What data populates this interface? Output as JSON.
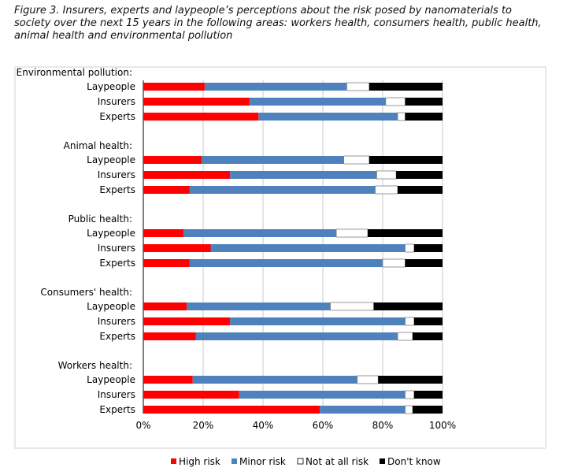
{
  "caption": "Figure 3. Insurers, experts and laypeople’s perceptions about the risk posed by nanomaterials to society over the next 15 years in the following areas: workers health, consumers health, public health, animal health and environmental pollution",
  "chart_data": {
    "type": "bar",
    "orientation": "horizontal",
    "stacked": "100%",
    "title": "Figure 3. Insurers, experts and laypeople’s perceptions about the risk posed by nanomaterials to society over the next 15 years in the following areas: workers health, consumers health, public health, animal health and environmental pollution",
    "xlim": [
      0,
      100
    ],
    "x_ticks": [
      "0%",
      "20%",
      "40%",
      "60%",
      "80%",
      "100%"
    ],
    "grid": "vertical",
    "legend_position": "bottom",
    "series": [
      {
        "name": "High risk",
        "color": "#ff0000"
      },
      {
        "name": "Minor risk",
        "color": "#4f81bd"
      },
      {
        "name": "Not at all risk",
        "color": "#ffffff"
      },
      {
        "name": "Don't know",
        "color": "#000000"
      }
    ],
    "groups": [
      {
        "label": "Environmental pollution:",
        "rows": [
          {
            "label": "Laypeople",
            "values": [
              20.5,
              47.5,
              7.5,
              24.5
            ]
          },
          {
            "label": "Insurers",
            "values": [
              35.5,
              45.5,
              6.5,
              12.5
            ]
          },
          {
            "label": "Experts",
            "values": [
              38.5,
              46.5,
              2.5,
              12.5
            ]
          }
        ]
      },
      {
        "label": "Animal health:",
        "rows": [
          {
            "label": "Laypeople",
            "values": [
              19.5,
              47.5,
              8.5,
              24.5
            ]
          },
          {
            "label": "Insurers",
            "values": [
              29,
              49,
              6.5,
              15.5
            ]
          },
          {
            "label": "Experts",
            "values": [
              15.5,
              62,
              7.5,
              15
            ]
          }
        ]
      },
      {
        "label": "Public health:",
        "rows": [
          {
            "label": "Laypeople",
            "values": [
              13.5,
              51,
              10.5,
              25
            ]
          },
          {
            "label": "Insurers",
            "values": [
              22.5,
              65,
              3,
              9.5
            ]
          },
          {
            "label": "Experts",
            "values": [
              15.5,
              64.5,
              7.5,
              12.5
            ]
          }
        ]
      },
      {
        "label": "Consumers' health:",
        "rows": [
          {
            "label": "Laypeople",
            "values": [
              14.5,
              48,
              14.5,
              23
            ]
          },
          {
            "label": "Insurers",
            "values": [
              29,
              58.5,
              3,
              9.5
            ]
          },
          {
            "label": "Experts",
            "values": [
              17.5,
              67.5,
              5,
              10
            ]
          }
        ]
      },
      {
        "label": "Workers health:",
        "rows": [
          {
            "label": "Laypeople",
            "values": [
              16.5,
              55,
              7,
              21.5
            ]
          },
          {
            "label": "Insurers",
            "values": [
              32,
              55.5,
              3,
              9.5
            ]
          },
          {
            "label": "Experts",
            "values": [
              59,
              28.5,
              2.5,
              10
            ]
          }
        ]
      }
    ]
  }
}
